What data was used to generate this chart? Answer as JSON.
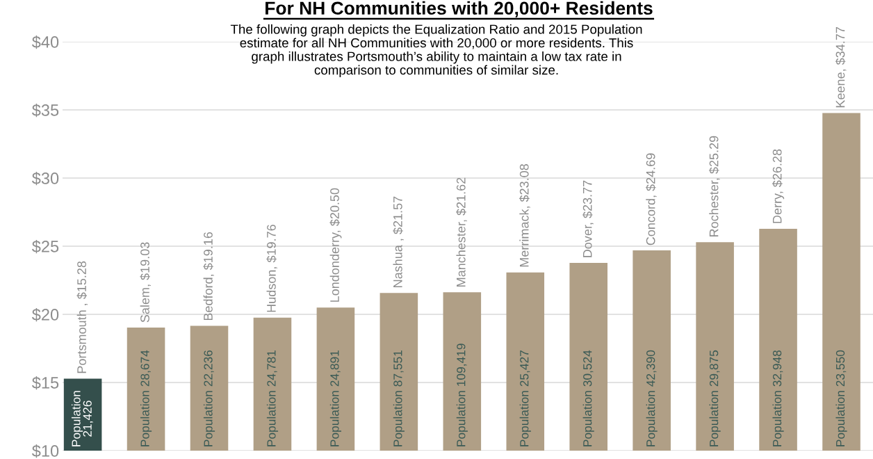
{
  "chart_data": {
    "type": "bar",
    "title": "For NH Communities with 20,000+ Residents",
    "subtitle": "The following graph depicts the Equalization Ratio and 2015 Population\nestimate for all NH Communities with 20,000 or more residents. This\ngraph illustrates Portsmouth’s ability to maintain a low tax rate in\ncomparison to communities of similar size.",
    "categories": [
      null,
      null,
      null,
      null,
      null,
      null,
      null,
      null,
      null,
      null,
      null,
      null,
      null
    ],
    "values": [
      15.28,
      19.03,
      19.16,
      19.76,
      20.5,
      21.57,
      21.62,
      23.08,
      23.77,
      24.69,
      25.29,
      26.28,
      34.77
    ],
    "colors": [
      "#344f4c",
      "#b09f86",
      "#b09f86",
      "#b09f86",
      "#b09f86",
      "#b09f86",
      "#b09f86",
      "#b09f86",
      "#b09f86",
      "#b09f86",
      "#b09f86",
      "#b09f86",
      "#b09f86"
    ],
    "value_labels": [
      "Portsmouth , $15.28",
      "Salem, $19.03",
      "Bedford, $19.16",
      "Hudson, $19.76",
      "Londonderry, $20.50",
      "Nashua , $21.57",
      "Manchester, $21.62",
      "Merrimack, $23.08",
      "Dover, $23.77",
      "Concord, $24.69",
      "Rochester, $25.29",
      "Derry, $26.28",
      "Keene, $34.77"
    ],
    "annotations": [
      "Population\n21,426",
      "Population 28,674",
      "Population 22,236",
      "Population 24,781",
      "Population 24,891",
      "Population 87,551",
      "Population 109,419",
      "Population 25,427",
      "Population 30,524",
      "Population 42,390",
      "Population 29,875",
      "Population 32,948",
      "Population 23,550"
    ],
    "ylim": [
      10,
      40
    ],
    "yticks": [
      {
        "value": 10,
        "label": "$10"
      },
      {
        "value": 15,
        "label": "$15"
      },
      {
        "value": 20,
        "label": "$20"
      },
      {
        "value": 25,
        "label": "$25"
      },
      {
        "value": 30,
        "label": "$30"
      },
      {
        "value": 35,
        "label": "$35"
      },
      {
        "value": 40,
        "label": "$40"
      }
    ],
    "grid": "y",
    "tick_labels": "y"
  }
}
